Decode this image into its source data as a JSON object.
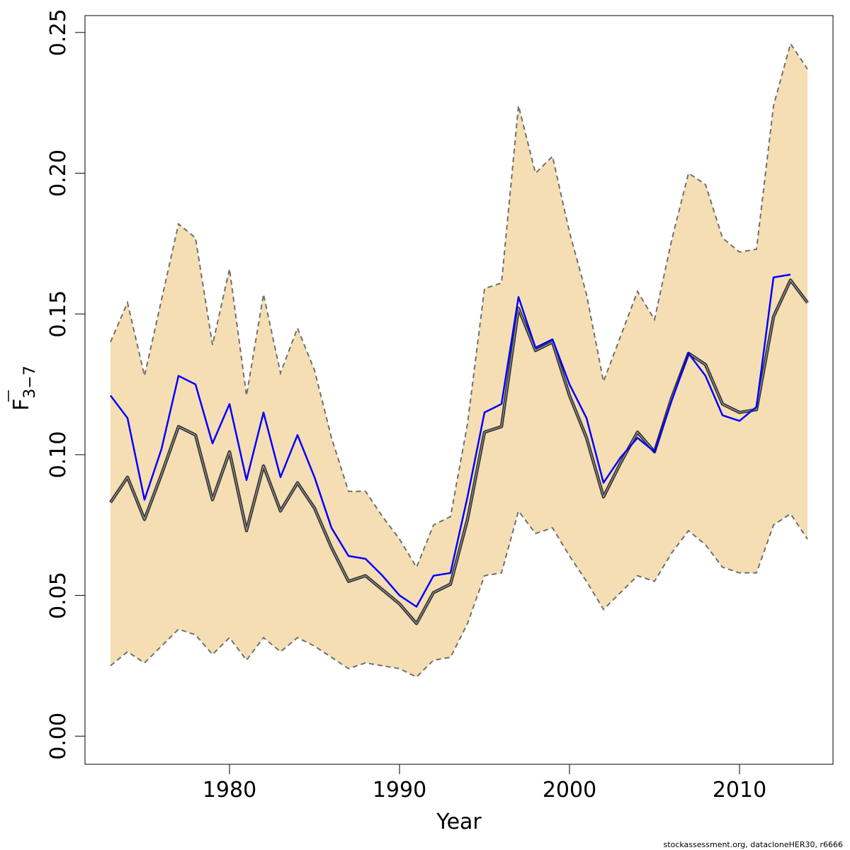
{
  "chart_data": {
    "type": "line",
    "xlabel": "Year",
    "ylabel_main": "F",
    "ylabel_sub": "3−7",
    "xlim": [
      1971.5,
      2015.5
    ],
    "ylim": [
      -0.01,
      0.256
    ],
    "xticks": [
      1980,
      1990,
      2000,
      2010
    ],
    "xtick_labels": [
      "1980",
      "1990",
      "2000",
      "2010"
    ],
    "yticks": [
      0.0,
      0.05,
      0.1,
      0.15,
      0.2,
      0.25
    ],
    "ytick_labels": [
      "0.00",
      "0.05",
      "0.10",
      "0.15",
      "0.20",
      "0.25"
    ],
    "grid": false,
    "colors": {
      "band": "#f5deb3",
      "band_edge": "#707070",
      "estimate": "#555555",
      "comparison": "#0000ff"
    },
    "x": [
      1973,
      1974,
      1975,
      1976,
      1977,
      1978,
      1979,
      1980,
      1981,
      1982,
      1983,
      1984,
      1985,
      1986,
      1987,
      1988,
      1989,
      1990,
      1991,
      1992,
      1993,
      1994,
      1995,
      1996,
      1997,
      1998,
      1999,
      2000,
      2001,
      2002,
      2003,
      2004,
      2005,
      2006,
      2007,
      2008,
      2009,
      2010,
      2011,
      2012,
      2013,
      2014
    ],
    "series": [
      {
        "role": "upper_ci",
        "values": [
          0.14,
          0.154,
          0.128,
          0.155,
          0.182,
          0.177,
          0.139,
          0.166,
          0.121,
          0.157,
          0.129,
          0.145,
          0.13,
          0.106,
          0.087,
          0.087,
          0.078,
          0.07,
          0.06,
          0.075,
          0.078,
          0.111,
          0.159,
          0.161,
          0.224,
          0.2,
          0.206,
          0.179,
          0.157,
          0.126,
          0.142,
          0.158,
          0.148,
          0.176,
          0.2,
          0.196,
          0.177,
          0.172,
          0.173,
          0.224,
          0.246,
          0.237
        ]
      },
      {
        "role": "lower_ci",
        "values": [
          0.025,
          0.03,
          0.026,
          0.032,
          0.038,
          0.036,
          0.029,
          0.035,
          0.027,
          0.035,
          0.03,
          0.035,
          0.032,
          0.028,
          0.024,
          0.026,
          0.025,
          0.024,
          0.021,
          0.027,
          0.028,
          0.04,
          0.057,
          0.058,
          0.08,
          0.072,
          0.074,
          0.064,
          0.055,
          0.045,
          0.051,
          0.057,
          0.055,
          0.065,
          0.073,
          0.068,
          0.06,
          0.058,
          0.058,
          0.075,
          0.079,
          0.07
        ]
      },
      {
        "role": "estimate",
        "values": [
          0.083,
          0.092,
          0.077,
          0.093,
          0.11,
          0.107,
          0.084,
          0.101,
          0.073,
          0.096,
          0.08,
          0.09,
          0.081,
          0.067,
          0.055,
          0.057,
          0.052,
          0.047,
          0.04,
          0.051,
          0.054,
          0.077,
          0.108,
          0.11,
          0.152,
          0.137,
          0.14,
          0.121,
          0.106,
          0.085,
          0.097,
          0.108,
          0.101,
          0.12,
          0.136,
          0.132,
          0.118,
          0.115,
          0.116,
          0.149,
          0.162,
          0.154
        ]
      },
      {
        "role": "comparison",
        "x": [
          1973,
          1974,
          1975,
          1976,
          1977,
          1978,
          1979,
          1980,
          1981,
          1982,
          1983,
          1984,
          1985,
          1986,
          1987,
          1988,
          1989,
          1990,
          1991,
          1992,
          1993,
          1994,
          1995,
          1996,
          1997,
          1998,
          1999,
          2000,
          2001,
          2002,
          2003,
          2004,
          2005,
          2006,
          2007,
          2008,
          2009,
          2010,
          2011,
          2012,
          2013
        ],
        "values": [
          0.121,
          0.113,
          0.084,
          0.102,
          0.128,
          0.125,
          0.104,
          0.118,
          0.091,
          0.115,
          0.092,
          0.107,
          0.092,
          0.074,
          0.064,
          0.063,
          0.057,
          0.05,
          0.046,
          0.057,
          0.058,
          0.085,
          0.115,
          0.118,
          0.156,
          0.138,
          0.141,
          0.125,
          0.113,
          0.09,
          0.099,
          0.106,
          0.101,
          0.119,
          0.136,
          0.128,
          0.114,
          0.112,
          0.117,
          0.163,
          0.164
        ]
      }
    ]
  },
  "footer": "stockassessment.org, datacloneHER30, r6666"
}
